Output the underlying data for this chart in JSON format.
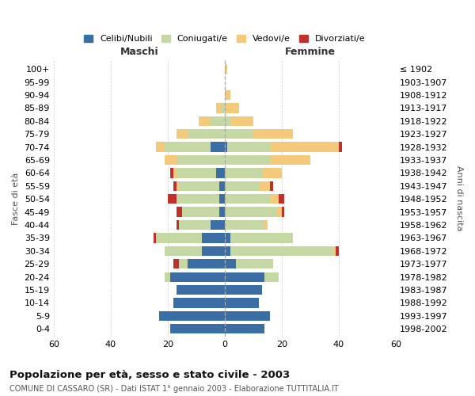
{
  "age_groups": [
    "0-4",
    "5-9",
    "10-14",
    "15-19",
    "20-24",
    "25-29",
    "30-34",
    "35-39",
    "40-44",
    "45-49",
    "50-54",
    "55-59",
    "60-64",
    "65-69",
    "70-74",
    "75-79",
    "80-84",
    "85-89",
    "90-94",
    "95-99",
    "100+"
  ],
  "birth_years": [
    "1998-2002",
    "1993-1997",
    "1988-1992",
    "1983-1987",
    "1978-1982",
    "1973-1977",
    "1968-1972",
    "1963-1967",
    "1958-1962",
    "1953-1957",
    "1948-1952",
    "1943-1947",
    "1938-1942",
    "1933-1937",
    "1928-1932",
    "1923-1927",
    "1918-1922",
    "1913-1917",
    "1908-1912",
    "1903-1907",
    "≤ 1902"
  ],
  "maschi": {
    "celibi": [
      19,
      23,
      18,
      17,
      19,
      13,
      8,
      8,
      5,
      2,
      2,
      2,
      3,
      0,
      5,
      0,
      0,
      0,
      0,
      0,
      0
    ],
    "coniugati": [
      0,
      0,
      0,
      0,
      2,
      3,
      13,
      16,
      11,
      13,
      15,
      14,
      14,
      17,
      16,
      13,
      5,
      1,
      0,
      0,
      0
    ],
    "vedovi": [
      0,
      0,
      0,
      0,
      0,
      0,
      0,
      0,
      0,
      0,
      0,
      1,
      1,
      4,
      3,
      4,
      4,
      2,
      0,
      0,
      0
    ],
    "divorziati": [
      0,
      0,
      0,
      0,
      0,
      2,
      0,
      1,
      1,
      2,
      3,
      1,
      1,
      0,
      0,
      0,
      0,
      0,
      0,
      0,
      0
    ]
  },
  "femmine": {
    "nubili": [
      14,
      16,
      12,
      13,
      14,
      4,
      2,
      2,
      0,
      0,
      0,
      0,
      0,
      0,
      1,
      0,
      0,
      0,
      0,
      0,
      0
    ],
    "coniugate": [
      0,
      0,
      0,
      0,
      5,
      13,
      36,
      22,
      14,
      18,
      16,
      12,
      13,
      16,
      15,
      10,
      2,
      0,
      0,
      0,
      0
    ],
    "vedove": [
      0,
      0,
      0,
      0,
      0,
      0,
      1,
      0,
      1,
      2,
      3,
      4,
      7,
      14,
      24,
      14,
      8,
      5,
      2,
      0,
      1
    ],
    "divorziate": [
      0,
      0,
      0,
      0,
      0,
      0,
      1,
      0,
      0,
      1,
      2,
      1,
      0,
      0,
      1,
      0,
      0,
      0,
      0,
      0,
      0
    ]
  },
  "colors": {
    "celibi": "#3a6ea5",
    "coniugati": "#c5d8a4",
    "vedovi": "#f5c97a",
    "divorziati": "#c0312b"
  },
  "xlim": 60,
  "title": "Popolazione per età, sesso e stato civile - 2003",
  "subtitle": "COMUNE DI CASSARO (SR) - Dati ISTAT 1° gennaio 2003 - Elaborazione TUTTITALIA.IT",
  "xlabel_left": "Maschi",
  "xlabel_right": "Femmine",
  "ylabel_left": "Fasce di età",
  "ylabel_right": "Anni di nascita",
  "legend_labels": [
    "Celibi/Nubili",
    "Coniugati/e",
    "Vedovi/e",
    "Divorziati/e"
  ],
  "bg_color": "#ffffff",
  "grid_color": "#cccccc"
}
